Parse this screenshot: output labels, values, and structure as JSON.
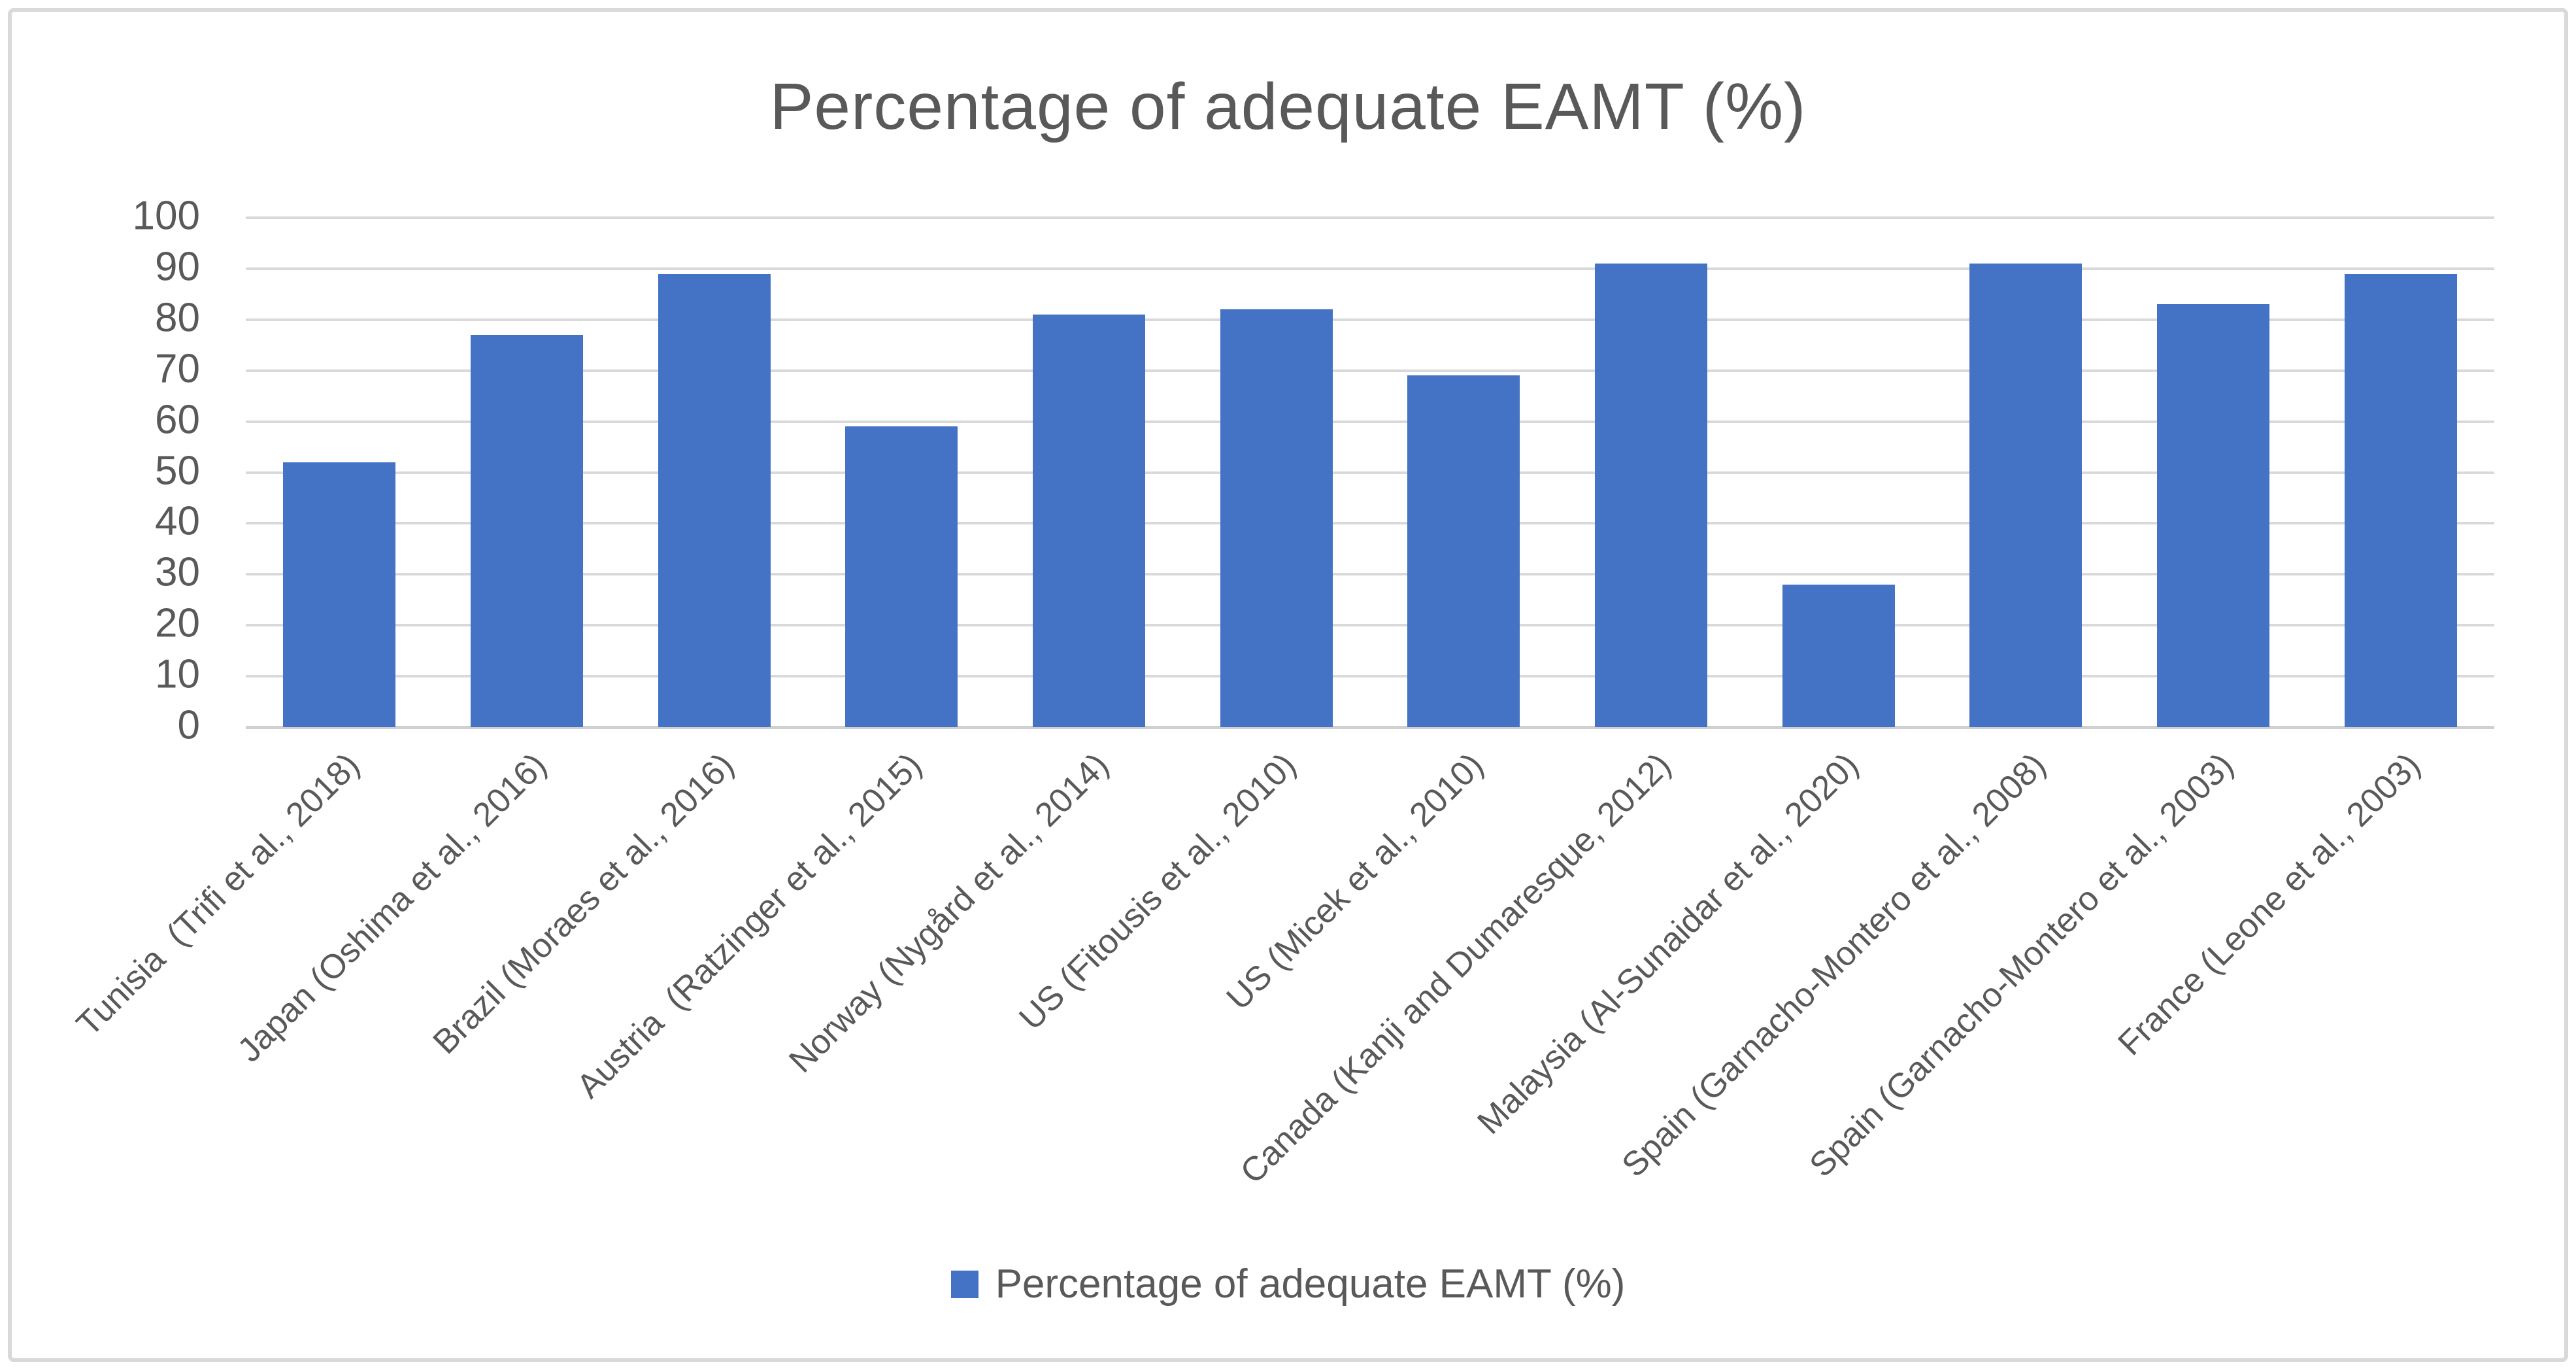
{
  "chart_data": {
    "type": "bar",
    "title": "Percentage of adequate EAMT (%)",
    "categories": [
      "Tunisia  (Trifi et al., 2018)",
      "Japan (Oshima et al., 2016)",
      "Brazil (Moraes et al., 2016)",
      "Austria  (Ratzinger et al., 2015)",
      "Norway (Nygård et al., 2014)",
      "US (Fitousis et al., 2010)",
      "US (Micek et al., 2010)",
      "Canada (Kanji and Dumaresque, 2012)",
      "Malaysia (Al-Sunaidar et al., 2020)",
      "Spain (Garnacho-Montero et al., 2008)",
      "Spain (Garnacho-Montero et al., 2003)",
      "France (Leone et al., 2003)"
    ],
    "series": [
      {
        "name": "Percentage of adequate EAMT (%)",
        "values": [
          52,
          77,
          89,
          59,
          81,
          82,
          69,
          91,
          28,
          91,
          83,
          89
        ]
      }
    ],
    "xlabel": "",
    "ylabel": "",
    "ylim": [
      0,
      100
    ],
    "yticks": [
      0,
      10,
      20,
      30,
      40,
      50,
      60,
      70,
      80,
      90,
      100
    ],
    "grid": "horizontal",
    "legend": {
      "label": "Percentage of adequate EAMT (%)",
      "position": "bottom",
      "marker_color": "#4472C4"
    },
    "colors": {
      "bar": "#4472C4",
      "gridline": "#D9D9D9",
      "text": "#595959",
      "frame_border": "#D9D9D9",
      "background": "#FFFFFF"
    }
  }
}
